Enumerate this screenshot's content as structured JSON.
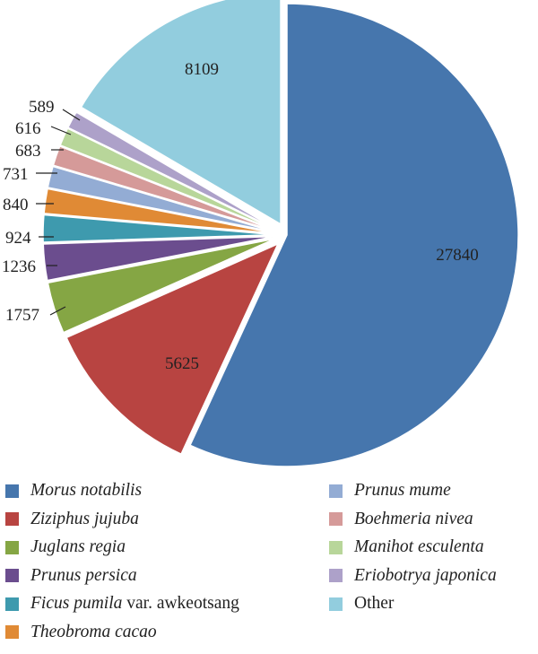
{
  "chart_data": {
    "type": "pie",
    "title": "",
    "slices": [
      {
        "label": "Morus notabilis",
        "italic": "Morus notabilis",
        "suffix": "",
        "value": 27840,
        "color": "#4676AD"
      },
      {
        "label": "Ziziphus jujuba",
        "italic": "Ziziphus jujuba",
        "suffix": "",
        "value": 5625,
        "color": "#B84441"
      },
      {
        "label": "Juglans regia",
        "italic": "Juglans regia",
        "suffix": "",
        "value": 1757,
        "color": "#85A644"
      },
      {
        "label": "Prunus persica",
        "italic": "Prunus persica",
        "suffix": "",
        "value": 1236,
        "color": "#6B4D8E"
      },
      {
        "label": "Ficus pumila var. awkeotsang",
        "italic": "Ficus pumila",
        "suffix": " var. awkeotsang",
        "value": 924,
        "color": "#3E9AAE"
      },
      {
        "label": "Theobroma cacao",
        "italic": "Theobroma cacao",
        "suffix": "",
        "value": 840,
        "color": "#E08A35"
      },
      {
        "label": "Prunus mume",
        "italic": "Prunus mume",
        "suffix": "",
        "value": 731,
        "color": "#93ACD4"
      },
      {
        "label": "Boehmeria nivea",
        "italic": "Boehmeria nivea",
        "suffix": "",
        "value": 683,
        "color": "#D59A99"
      },
      {
        "label": "Manihot esculenta",
        "italic": "Manihot esculenta",
        "suffix": "",
        "value": 616,
        "color": "#B8D69A"
      },
      {
        "label": "Eriobotrya japonica",
        "italic": "Eriobotrya japonica",
        "suffix": "",
        "value": 589,
        "color": "#ADA1C9"
      },
      {
        "label": "Other",
        "italic": "",
        "suffix": "Other",
        "value": 8109,
        "color": "#92CDDE"
      }
    ],
    "legend_position": "bottom"
  }
}
